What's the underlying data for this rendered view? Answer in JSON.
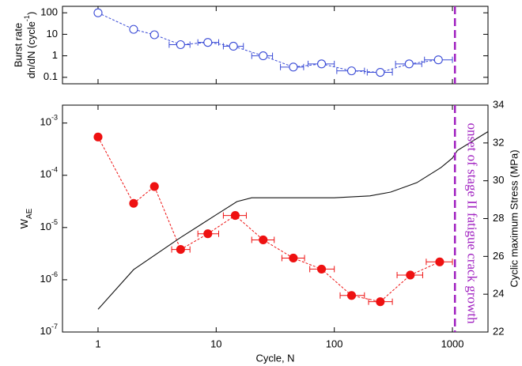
{
  "chart_data": [
    {
      "type": "line",
      "xscale": "log",
      "yscale": "log",
      "ylabel": [
        "Burst rate",
        "dn/dN (cycle-1)"
      ],
      "xlim": [
        0.5,
        2000
      ],
      "xticks": [
        1,
        10,
        100,
        1000
      ],
      "show_xtick_labels": false,
      "ylim": [
        0.05,
        200
      ],
      "yticks": [
        100,
        10,
        1,
        0.1
      ],
      "vline": {
        "x": 1050,
        "color": "#a020c0"
      },
      "series": [
        {
          "color": "#3a4bd6",
          "marker": "open-circle",
          "linestyle": "dashed",
          "x": [
            1,
            2,
            3,
            5,
            8.5,
            14,
            25,
            45,
            78,
            140,
            245,
            430,
            760
          ],
          "values": [
            100,
            17,
            9.5,
            3.3,
            4.2,
            2.8,
            1.0,
            0.3,
            0.42,
            0.2,
            0.17,
            0.42,
            0.65
          ],
          "xerr": [
            null,
            null,
            null,
            [
              4,
              6
            ],
            [
              7,
              10.5
            ],
            [
              11.5,
              17
            ],
            [
              20,
              30
            ],
            [
              35,
              55
            ],
            [
              60,
              100
            ],
            [
              105,
              180
            ],
            [
              190,
              310
            ],
            [
              330,
              550
            ],
            [
              580,
              1000
            ]
          ]
        }
      ]
    },
    {
      "type": "line",
      "xscale": "log",
      "yscale": "log",
      "xlabel": "Cycle, N",
      "ylabel": "WAE",
      "y2label": "Cyclic maximum Stress (MPa)",
      "xlim": [
        0.5,
        2000
      ],
      "xticks": [
        1,
        10,
        100,
        1000
      ],
      "show_xtick_labels": true,
      "ylim": [
        1e-07,
        0.0022
      ],
      "yticks": [
        {
          "value": 0.001,
          "label": "10-3"
        },
        {
          "value": 0.0001,
          "label": "10-4"
        },
        {
          "value": 1e-05,
          "label": "10-5"
        },
        {
          "value": 1e-06,
          "label": "10-6"
        },
        {
          "value": 1e-07,
          "label": "10-7"
        }
      ],
      "y2lim": [
        22,
        34
      ],
      "y2ticks": [
        22,
        24,
        26,
        28,
        30,
        32,
        34
      ],
      "vline": {
        "x": 1050,
        "color": "#a020c0"
      },
      "annotation": "onset of stage II fatigue crack growth",
      "series": [
        {
          "color": "#ee1111",
          "marker": "filled-circle",
          "linestyle": "dashed",
          "x": [
            1,
            2,
            3,
            5,
            8.5,
            14.5,
            25,
            45,
            78,
            140,
            245,
            440,
            780
          ],
          "values": [
            0.00054,
            2.9e-05,
            6.1e-05,
            3.8e-06,
            7.6e-06,
            1.7e-05,
            5.8e-06,
            2.6e-06,
            1.6e-06,
            5e-07,
            3.8e-07,
            1.23e-06,
            2.2e-06
          ],
          "xerr": [
            null,
            null,
            null,
            [
              4.2,
              6
            ],
            [
              7,
              10.5
            ],
            [
              11.5,
              18
            ],
            [
              20,
              31
            ],
            [
              36,
              56
            ],
            [
              62,
              100
            ],
            [
              112,
              180
            ],
            [
              195,
              310
            ],
            [
              340,
              560
            ],
            [
              600,
              1000
            ]
          ]
        },
        {
          "color": "#111111",
          "marker": "none",
          "linestyle": "solid",
          "axis": "y2",
          "x": [
            1,
            2,
            5,
            10,
            15,
            20,
            30,
            100,
            200,
            300,
            500,
            800,
            1000,
            1100,
            2000
          ],
          "values": [
            23.2,
            25.3,
            27.0,
            28.2,
            28.9,
            29.1,
            29.1,
            29.1,
            29.2,
            29.4,
            29.9,
            30.7,
            31.2,
            31.6,
            32.6
          ]
        }
      ]
    }
  ]
}
